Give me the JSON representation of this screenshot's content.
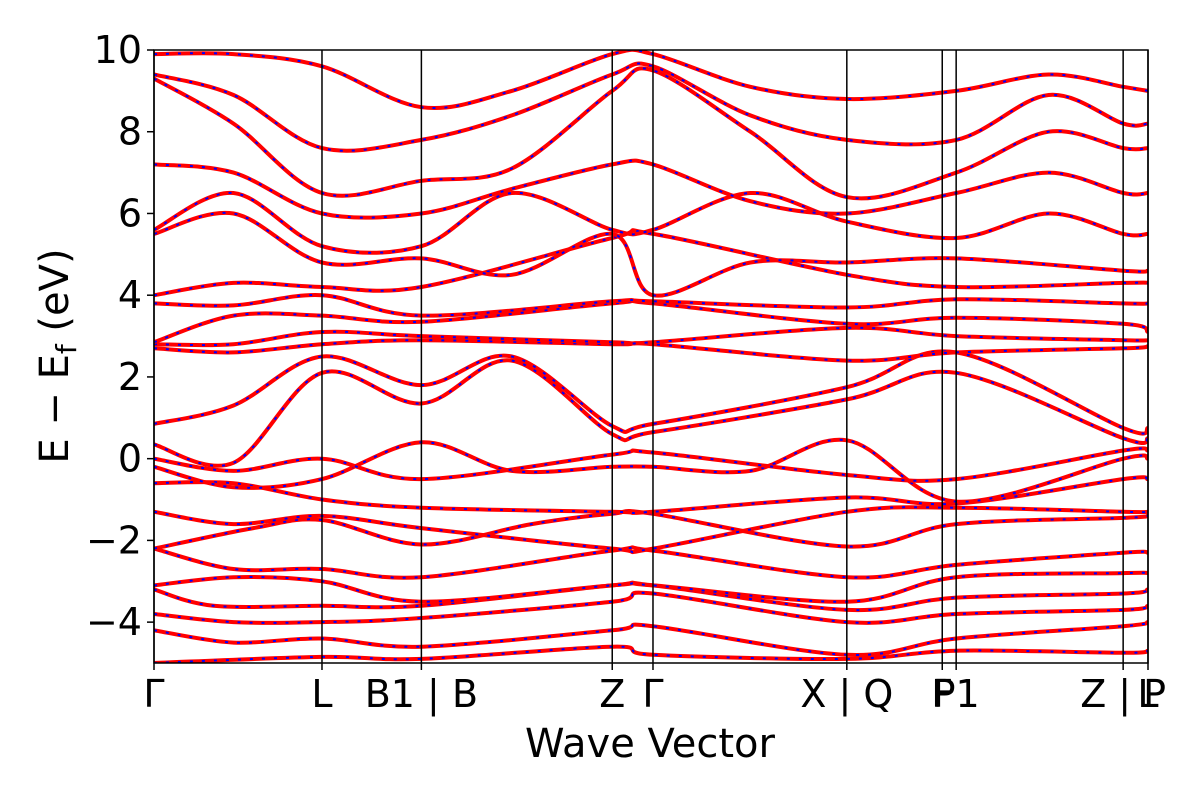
{
  "chart_data": {
    "type": "line",
    "title": "",
    "xlabel": "Wave Vector",
    "ylabel_parts": {
      "main": "E − E",
      "sub": "f",
      "unit": " (eV)"
    },
    "ylim": [
      -5,
      10
    ],
    "yticks": [
      {
        "value": 10,
        "label": "10"
      },
      {
        "value": 8,
        "label": "8"
      },
      {
        "value": 6,
        "label": "6"
      },
      {
        "value": 4,
        "label": "4"
      },
      {
        "value": 2,
        "label": "2"
      },
      {
        "value": 0,
        "label": "0"
      },
      {
        "value": -2,
        "label": "−2"
      },
      {
        "value": -4,
        "label": "−4"
      }
    ],
    "xlim": [
      0,
      1
    ],
    "kpoints": [
      {
        "x": 0.0,
        "label": "Γ"
      },
      {
        "x": 0.169,
        "label": "L"
      },
      {
        "x": 0.269,
        "label": "B1 | B"
      },
      {
        "x": 0.461,
        "label": "Z"
      },
      {
        "x": 0.502,
        "label": "Γ"
      },
      {
        "x": 0.697,
        "label": "X | Q"
      },
      {
        "x": 0.793,
        "label": "F"
      },
      {
        "x": 0.807,
        "label": "P1"
      },
      {
        "x": 0.975,
        "label": "Z | P"
      },
      {
        "x": 1.0,
        "label": "L"
      }
    ],
    "series_colors": {
      "primary": "#ff0000",
      "overlay": "#0000ff"
    },
    "bands": [
      [
        [
          0,
          -5.0
        ],
        [
          0.169,
          -4.85
        ],
        [
          0.269,
          -4.9
        ],
        [
          0.461,
          -4.6
        ],
        [
          0.502,
          -4.8
        ],
        [
          0.697,
          -4.9
        ],
        [
          0.807,
          -4.7
        ],
        [
          0.975,
          -4.75
        ],
        [
          1.0,
          -4.7
        ]
      ],
      [
        [
          0,
          -4.2
        ],
        [
          0.08,
          -4.5
        ],
        [
          0.169,
          -4.4
        ],
        [
          0.269,
          -4.6
        ],
        [
          0.461,
          -4.2
        ],
        [
          0.502,
          -4.1
        ],
        [
          0.697,
          -4.8
        ],
        [
          0.807,
          -4.4
        ],
        [
          0.975,
          -4.1
        ],
        [
          1.0,
          -4.0
        ]
      ],
      [
        [
          0,
          -3.8
        ],
        [
          0.08,
          -4.0
        ],
        [
          0.169,
          -4.0
        ],
        [
          0.269,
          -3.9
        ],
        [
          0.461,
          -3.5
        ],
        [
          0.502,
          -3.3
        ],
        [
          0.697,
          -4.0
        ],
        [
          0.807,
          -3.8
        ],
        [
          0.975,
          -3.7
        ],
        [
          1.0,
          -3.6
        ]
      ],
      [
        [
          0,
          -3.2
        ],
        [
          0.06,
          -3.6
        ],
        [
          0.169,
          -3.6
        ],
        [
          0.269,
          -3.6
        ],
        [
          0.461,
          -3.1
        ],
        [
          0.502,
          -3.1
        ],
        [
          0.697,
          -3.7
        ],
        [
          0.807,
          -3.4
        ],
        [
          0.975,
          -3.3
        ],
        [
          1.0,
          -3.2
        ]
      ],
      [
        [
          0,
          -3.1
        ],
        [
          0.08,
          -2.9
        ],
        [
          0.169,
          -3.0
        ],
        [
          0.269,
          -3.5
        ],
        [
          0.461,
          -3.1
        ],
        [
          0.502,
          -3.1
        ],
        [
          0.697,
          -3.5
        ],
        [
          0.807,
          -2.9
        ],
        [
          0.975,
          -2.8
        ],
        [
          1.0,
          -2.8
        ]
      ],
      [
        [
          0,
          -2.2
        ],
        [
          0.08,
          -2.7
        ],
        [
          0.169,
          -2.7
        ],
        [
          0.269,
          -2.9
        ],
        [
          0.461,
          -2.25
        ],
        [
          0.502,
          -2.25
        ],
        [
          0.697,
          -2.9
        ],
        [
          0.807,
          -2.6
        ],
        [
          0.975,
          -2.3
        ],
        [
          1.0,
          -2.3
        ]
      ],
      [
        [
          0,
          -2.2
        ],
        [
          0.1,
          -1.7
        ],
        [
          0.169,
          -1.5
        ],
        [
          0.269,
          -2.1
        ],
        [
          0.38,
          -1.6
        ],
        [
          0.461,
          -1.35
        ],
        [
          0.502,
          -1.35
        ],
        [
          0.697,
          -2.15
        ],
        [
          0.807,
          -1.6
        ],
        [
          0.975,
          -1.45
        ],
        [
          1.0,
          -1.4
        ]
      ],
      [
        [
          0,
          -1.3
        ],
        [
          0.08,
          -1.6
        ],
        [
          0.169,
          -1.4
        ],
        [
          0.269,
          -1.7
        ],
        [
          0.461,
          -2.2
        ],
        [
          0.502,
          -2.2
        ],
        [
          0.697,
          -1.3
        ],
        [
          0.807,
          -1.2
        ],
        [
          0.975,
          -1.3
        ],
        [
          1.0,
          -1.3
        ]
      ],
      [
        [
          0,
          -0.6
        ],
        [
          0.08,
          -0.6
        ],
        [
          0.169,
          -1.0
        ],
        [
          0.269,
          -1.2
        ],
        [
          0.461,
          -1.3
        ],
        [
          0.502,
          -1.3
        ],
        [
          0.697,
          -0.95
        ],
        [
          0.807,
          -1.1
        ],
        [
          0.975,
          -0.5
        ],
        [
          1.0,
          -0.5
        ]
      ],
      [
        [
          0,
          -0.2
        ],
        [
          0.08,
          -0.7
        ],
        [
          0.169,
          -0.5
        ],
        [
          0.269,
          0.4
        ],
        [
          0.36,
          -0.3
        ],
        [
          0.461,
          -0.2
        ],
        [
          0.502,
          -0.2
        ],
        [
          0.6,
          -0.3
        ],
        [
          0.697,
          0.45
        ],
        [
          0.807,
          -1.05
        ],
        [
          0.975,
          0.0
        ],
        [
          1.0,
          0.0
        ]
      ],
      [
        [
          0,
          0.0
        ],
        [
          0.08,
          -0.3
        ],
        [
          0.169,
          0.0
        ],
        [
          0.269,
          -0.5
        ],
        [
          0.461,
          0.1
        ],
        [
          0.502,
          0.15
        ],
        [
          0.697,
          -0.4
        ],
        [
          0.807,
          -0.5
        ],
        [
          0.975,
          0.2
        ],
        [
          1.0,
          0.2
        ]
      ],
      [
        [
          0,
          0.35
        ],
        [
          0.08,
          -0.1
        ],
        [
          0.169,
          2.1
        ],
        [
          0.269,
          1.35
        ],
        [
          0.36,
          2.4
        ],
        [
          0.461,
          0.6
        ],
        [
          0.502,
          0.65
        ],
        [
          0.697,
          1.45
        ],
        [
          0.807,
          2.1
        ],
        [
          0.975,
          0.5
        ],
        [
          1.0,
          0.5
        ]
      ],
      [
        [
          0,
          0.85
        ],
        [
          0.08,
          1.3
        ],
        [
          0.169,
          2.5
        ],
        [
          0.269,
          1.8
        ],
        [
          0.36,
          2.5
        ],
        [
          0.461,
          0.8
        ],
        [
          0.502,
          0.85
        ],
        [
          0.697,
          1.75
        ],
        [
          0.807,
          2.6
        ],
        [
          0.975,
          0.75
        ],
        [
          1.0,
          0.75
        ]
      ],
      [
        [
          0,
          2.7
        ],
        [
          0.08,
          2.6
        ],
        [
          0.169,
          2.8
        ],
        [
          0.269,
          2.9
        ],
        [
          0.461,
          2.8
        ],
        [
          0.502,
          2.8
        ],
        [
          0.697,
          2.4
        ],
        [
          0.807,
          2.6
        ],
        [
          0.975,
          2.7
        ],
        [
          1.0,
          2.75
        ]
      ],
      [
        [
          0,
          2.8
        ],
        [
          0.08,
          2.8
        ],
        [
          0.169,
          3.1
        ],
        [
          0.269,
          3.0
        ],
        [
          0.461,
          2.85
        ],
        [
          0.502,
          2.85
        ],
        [
          0.697,
          3.2
        ],
        [
          0.807,
          3.0
        ],
        [
          0.975,
          2.9
        ],
        [
          1.0,
          2.9
        ]
      ],
      [
        [
          0,
          2.85
        ],
        [
          0.08,
          3.5
        ],
        [
          0.169,
          3.5
        ],
        [
          0.269,
          3.35
        ],
        [
          0.461,
          3.8
        ],
        [
          0.502,
          3.8
        ],
        [
          0.697,
          3.3
        ],
        [
          0.807,
          3.45
        ],
        [
          0.975,
          3.3
        ],
        [
          1.0,
          3.1
        ]
      ],
      [
        [
          0,
          3.8
        ],
        [
          0.08,
          3.75
        ],
        [
          0.169,
          4.0
        ],
        [
          0.269,
          3.5
        ],
        [
          0.461,
          3.85
        ],
        [
          0.502,
          3.85
        ],
        [
          0.697,
          3.7
        ],
        [
          0.807,
          3.9
        ],
        [
          0.975,
          3.8
        ],
        [
          1.0,
          3.8
        ]
      ],
      [
        [
          0,
          4.0
        ],
        [
          0.08,
          4.3
        ],
        [
          0.169,
          4.2
        ],
        [
          0.269,
          4.2
        ],
        [
          0.461,
          5.4
        ],
        [
          0.502,
          5.5
        ],
        [
          0.697,
          4.5
        ],
        [
          0.807,
          4.2
        ],
        [
          0.975,
          4.3
        ],
        [
          1.0,
          4.3
        ]
      ],
      [
        [
          0,
          5.5
        ],
        [
          0.08,
          6.0
        ],
        [
          0.169,
          4.8
        ],
        [
          0.269,
          4.9
        ],
        [
          0.36,
          4.5
        ],
        [
          0.461,
          5.5
        ],
        [
          0.502,
          4.0
        ],
        [
          0.6,
          4.8
        ],
        [
          0.697,
          4.8
        ],
        [
          0.807,
          4.9
        ],
        [
          0.975,
          4.6
        ],
        [
          1.0,
          4.6
        ]
      ],
      [
        [
          0,
          5.6
        ],
        [
          0.08,
          6.5
        ],
        [
          0.169,
          5.2
        ],
        [
          0.269,
          5.2
        ],
        [
          0.36,
          6.5
        ],
        [
          0.461,
          5.6
        ],
        [
          0.502,
          5.6
        ],
        [
          0.6,
          6.5
        ],
        [
          0.697,
          5.8
        ],
        [
          0.807,
          5.4
        ],
        [
          0.9,
          6.0
        ],
        [
          0.975,
          5.5
        ],
        [
          1.0,
          5.5
        ]
      ],
      [
        [
          0,
          7.2
        ],
        [
          0.08,
          7.0
        ],
        [
          0.169,
          6.0
        ],
        [
          0.269,
          6.0
        ],
        [
          0.36,
          6.6
        ],
        [
          0.461,
          7.2
        ],
        [
          0.502,
          7.2
        ],
        [
          0.6,
          6.3
        ],
        [
          0.697,
          6.0
        ],
        [
          0.807,
          6.5
        ],
        [
          0.9,
          7.0
        ],
        [
          0.975,
          6.5
        ],
        [
          1.0,
          6.5
        ]
      ],
      [
        [
          0,
          9.3
        ],
        [
          0.08,
          8.2
        ],
        [
          0.169,
          6.5
        ],
        [
          0.269,
          6.8
        ],
        [
          0.36,
          7.1
        ],
        [
          0.461,
          9.0
        ],
        [
          0.502,
          9.5
        ],
        [
          0.6,
          8.0
        ],
        [
          0.697,
          6.4
        ],
        [
          0.807,
          7.0
        ],
        [
          0.9,
          8.0
        ],
        [
          0.975,
          7.6
        ],
        [
          1.0,
          7.6
        ]
      ],
      [
        [
          0,
          9.4
        ],
        [
          0.08,
          8.9
        ],
        [
          0.169,
          7.6
        ],
        [
          0.269,
          7.8
        ],
        [
          0.36,
          8.4
        ],
        [
          0.461,
          9.4
        ],
        [
          0.502,
          9.6
        ],
        [
          0.6,
          8.4
        ],
        [
          0.697,
          7.8
        ],
        [
          0.807,
          7.8
        ],
        [
          0.9,
          8.9
        ],
        [
          0.975,
          8.2
        ],
        [
          1.0,
          8.2
        ]
      ],
      [
        [
          0,
          9.9
        ],
        [
          0.08,
          9.9
        ],
        [
          0.169,
          9.6
        ],
        [
          0.269,
          8.6
        ],
        [
          0.36,
          9.0
        ],
        [
          0.461,
          9.9
        ],
        [
          0.502,
          9.9
        ],
        [
          0.6,
          9.1
        ],
        [
          0.697,
          8.8
        ],
        [
          0.807,
          9.0
        ],
        [
          0.9,
          9.4
        ],
        [
          0.975,
          9.1
        ],
        [
          1.0,
          9.0
        ]
      ]
    ]
  }
}
